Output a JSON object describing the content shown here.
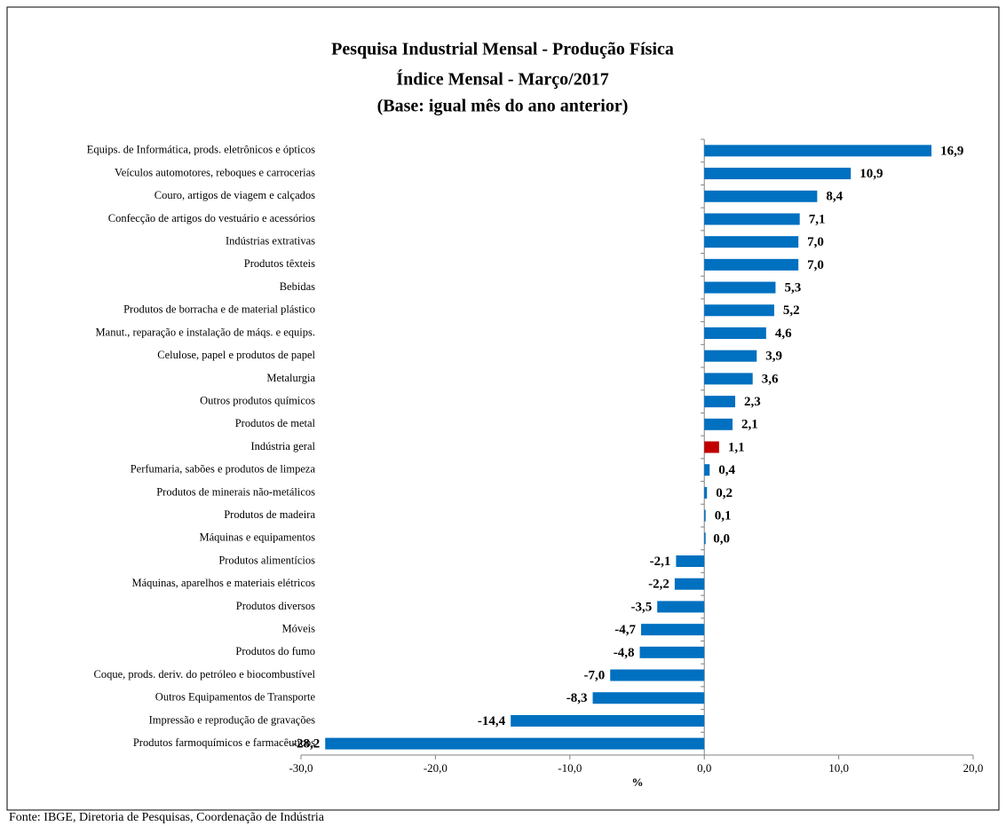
{
  "chart_data": {
    "type": "bar",
    "orientation": "horizontal",
    "title": [
      "Pesquisa Industrial Mensal - Produção Física",
      "Índice Mensal - Março/2017",
      "(Base: igual mês do ano anterior)"
    ],
    "categories": [
      "Equips. de Informática, prods. eletrônicos e ópticos",
      "Veículos automotores, reboques e carrocerias",
      "Couro, artigos de viagem e calçados",
      "Confecção de artigos do vestuário e acessórios",
      "Indústrias extrativas",
      "Produtos têxteis",
      "Bebidas",
      "Produtos de borracha e de material plástico",
      "Manut., reparação e instalação de máqs. e equips.",
      "Celulose, papel e produtos de papel",
      "Metalurgia",
      "Outros produtos químicos",
      "Produtos de metal",
      "Indústria geral",
      "Perfumaria, sabões e produtos de limpeza",
      "Produtos de minerais não-metálicos",
      "Produtos de madeira",
      "Máquinas e equipamentos",
      "Produtos alimentícios",
      "Máquinas, aparelhos e materiais elétricos",
      "Produtos diversos",
      "Móveis",
      "Produtos do fumo",
      "Coque, prods. deriv. do petróleo e biocombustível",
      "Outros Equipamentos de Transporte",
      "Impressão e reprodução de gravações",
      "Produtos farmoquímicos e farmacêuticos"
    ],
    "values": [
      16.9,
      10.9,
      8.4,
      7.1,
      7.0,
      7.0,
      5.3,
      5.2,
      4.6,
      3.9,
      3.6,
      2.3,
      2.1,
      1.1,
      0.4,
      0.2,
      0.1,
      0.0,
      -2.1,
      -2.2,
      -3.5,
      -4.7,
      -4.8,
      -7.0,
      -8.3,
      -14.4,
      -28.2
    ],
    "value_labels": [
      "16,9",
      "10,9",
      "8,4",
      "7,1",
      "7,0",
      "7,0",
      "5,3",
      "5,2",
      "4,6",
      "3,9",
      "3,6",
      "2,3",
      "2,1",
      "1,1",
      "0,4",
      "0,2",
      "0,1",
      "0,0",
      "-2,1",
      "-2,2",
      "-3,5",
      "-4,7",
      "-4,8",
      "-7,0",
      "-8,3",
      "-14,4",
      "-28,2"
    ],
    "colors": [
      "#0070c0",
      "#0070c0",
      "#0070c0",
      "#0070c0",
      "#0070c0",
      "#0070c0",
      "#0070c0",
      "#0070c0",
      "#0070c0",
      "#0070c0",
      "#0070c0",
      "#0070c0",
      "#0070c0",
      "#c00000",
      "#0070c0",
      "#0070c0",
      "#0070c0",
      "#0070c0",
      "#0070c0",
      "#0070c0",
      "#0070c0",
      "#0070c0",
      "#0070c0",
      "#0070c0",
      "#0070c0",
      "#0070c0",
      "#0070c0"
    ],
    "xlabel": "%",
    "xlim": [
      -30,
      20
    ],
    "xticks": [
      {
        "value": -30,
        "label": "-30,0"
      },
      {
        "value": -20,
        "label": "-20,0"
      },
      {
        "value": -10,
        "label": "-10,0"
      },
      {
        "value": 0,
        "label": "0,0"
      },
      {
        "value": 10,
        "label": "10,0"
      },
      {
        "value": 20,
        "label": "20,0"
      }
    ],
    "source": "Fonte: IBGE, Diretoria de Pesquisas, Coordenação de Indústria"
  }
}
